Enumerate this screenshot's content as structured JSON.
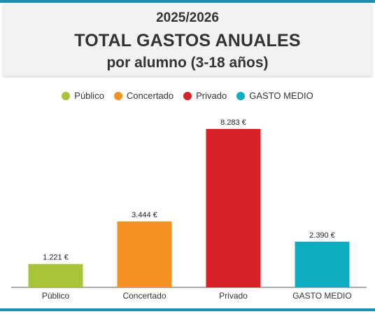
{
  "header": {
    "line1": "2025/2026",
    "line2": "TOTAL GASTOS ANUALES",
    "line3": "por alumno (3-18 años)"
  },
  "colors": {
    "accent_rule": "#1d8fb5"
  },
  "chart_data": {
    "type": "bar",
    "categories": [
      "Público",
      "Concertado",
      "Privado",
      "GASTO MEDIO"
    ],
    "values": [
      1221,
      3444,
      8283,
      2390
    ],
    "value_labels": [
      "1.221 €",
      "3.444 €",
      "8.283 €",
      "2.390 €"
    ],
    "colors": [
      "#a8c43a",
      "#f39123",
      "#d62227",
      "#0eacc0"
    ],
    "legend": {
      "position": "top-center",
      "entries": [
        "Público",
        "Concertado",
        "Privado",
        "GASTO MEDIO"
      ]
    },
    "ylim": [
      0,
      8283
    ],
    "grid": false
  }
}
